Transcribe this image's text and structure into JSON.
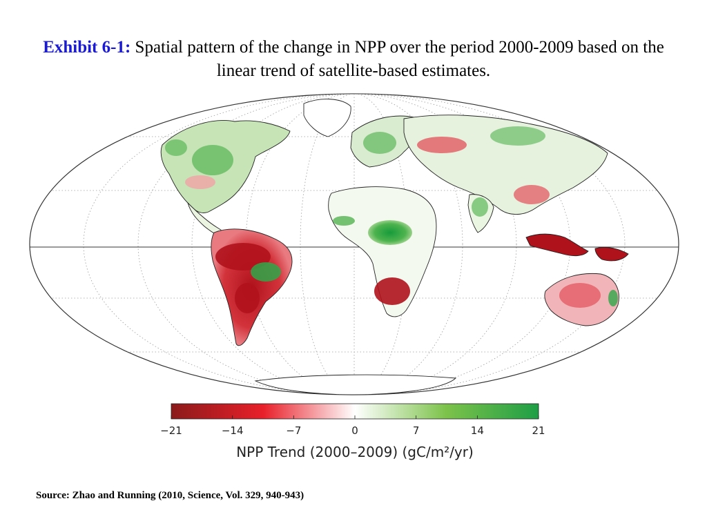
{
  "title": {
    "lead": "Exhibit 6-1:",
    "text": "Spatial pattern of the change in NPP over the period 2000-2009 based on the linear trend of satellite-based estimates."
  },
  "map": {
    "projection": "Mollweide",
    "graticule": "dotted",
    "colors": {
      "strong_decline": "#b0121c",
      "decline": "#e84a55",
      "neutral": "#ffffff",
      "increase": "#6cc24a",
      "strong_increase": "#169c3a"
    }
  },
  "colorbar": {
    "ticks": [
      "−21",
      "−14",
      "−7",
      "0",
      "7",
      "14",
      "21"
    ],
    "tick_values": [
      -21,
      -14,
      -7,
      0,
      7,
      14,
      21
    ],
    "range": [
      -21,
      21
    ],
    "label": "NPP Trend (2000–2009) (gC/m²/yr)",
    "stops": [
      "#8b1a1a",
      "#e8202a",
      "#ffffff",
      "#7cc24a",
      "#1e9e46"
    ]
  },
  "source": "Source: Zhao and Running (2010, Science, Vol. 329, 940-943)"
}
